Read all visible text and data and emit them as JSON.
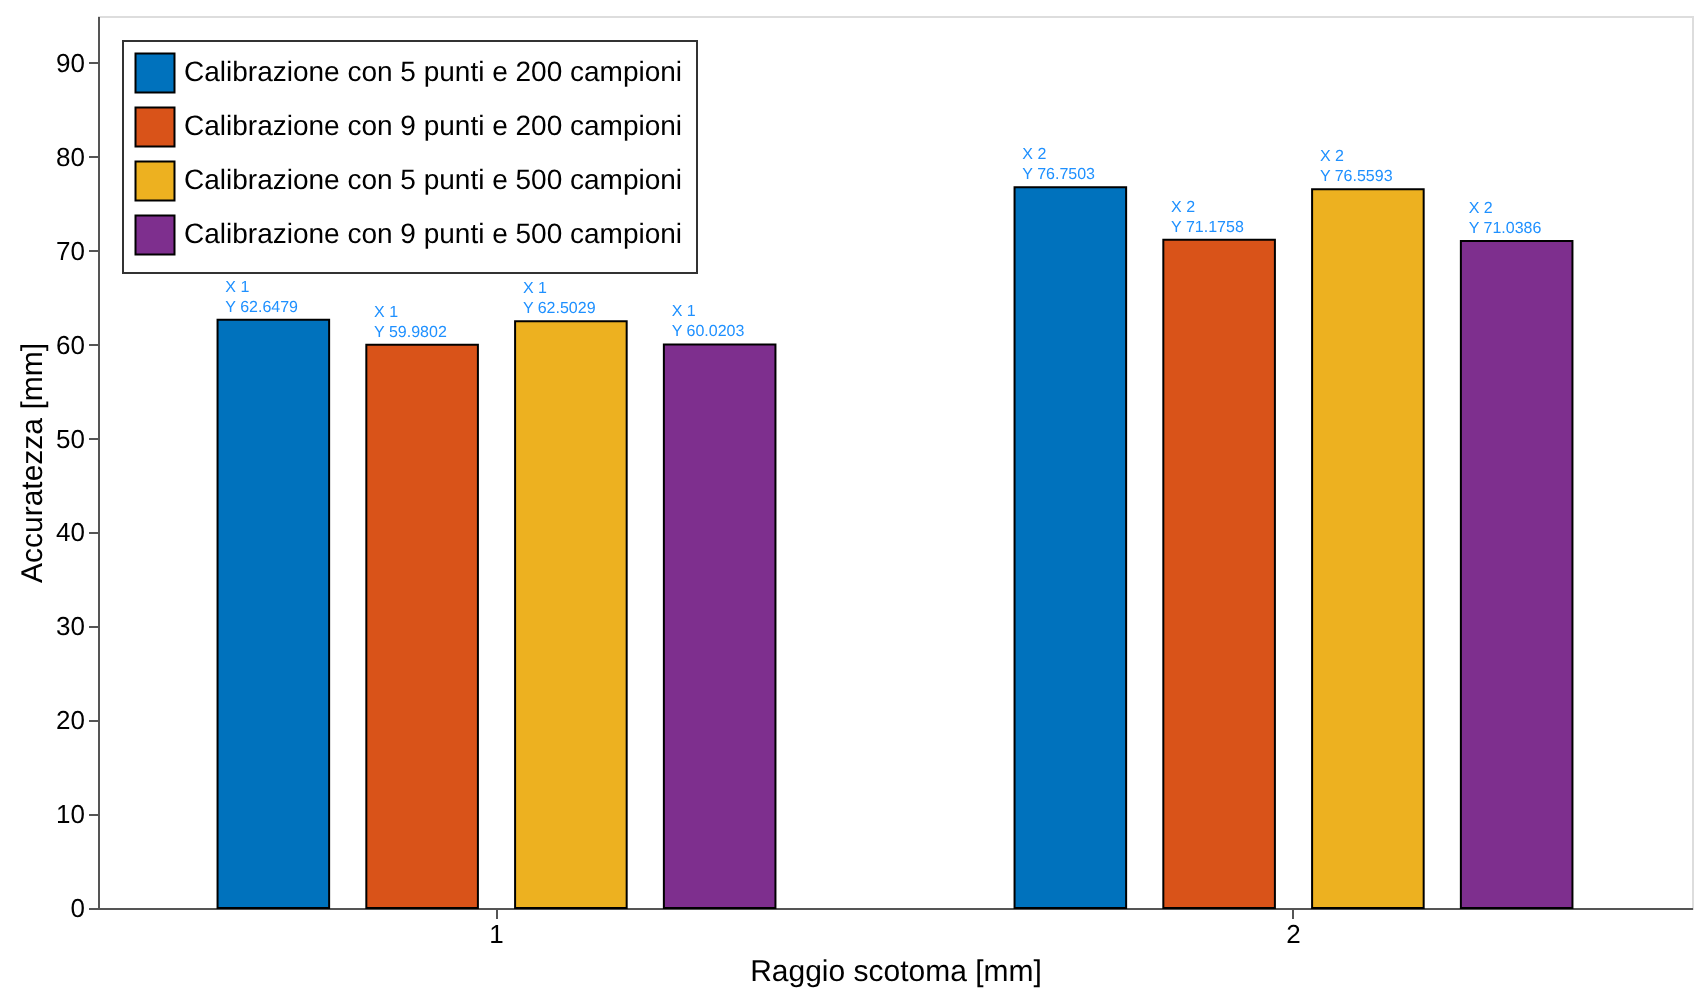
{
  "chart_data": {
    "type": "bar",
    "xlabel": "Raggio scotoma [mm]",
    "ylabel": "Accuratezza [mm]",
    "categories": [
      "1",
      "2"
    ],
    "series": [
      {
        "name": "Calibrazione con 5 punti e 200 campioni",
        "color": "#0072bd",
        "values": [
          62.6479,
          76.7503
        ],
        "value_labels": [
          "X 1\nY 62.6479",
          "X 2\nY 76.7503"
        ]
      },
      {
        "name": "Calibrazione con 9 punti e 200 campioni",
        "color": "#d95319",
        "values": [
          59.9802,
          71.1758
        ],
        "value_labels": [
          "X 1\nY 59.9802",
          "X 2\nY 71.1758"
        ]
      },
      {
        "name": "Calibrazione con 5 punti e 500 campioni",
        "color": "#edb120",
        "values": [
          62.5029,
          76.5593
        ],
        "value_labels": [
          "X 1\nY 62.5029",
          "X 2\nY 76.5593"
        ]
      },
      {
        "name": "Calibrazione con 9 punti e 500 campioni",
        "color": "#7e2f8e",
        "values": [
          60.0203,
          71.0386
        ],
        "value_labels": [
          "X 1\nY 60.0203",
          "X 2\nY 71.0386"
        ]
      }
    ],
    "ylim": [
      0,
      95
    ],
    "yticks": [
      0,
      10,
      20,
      30,
      40,
      50,
      60,
      70,
      80,
      90
    ],
    "grid": false,
    "legend": "top left"
  }
}
